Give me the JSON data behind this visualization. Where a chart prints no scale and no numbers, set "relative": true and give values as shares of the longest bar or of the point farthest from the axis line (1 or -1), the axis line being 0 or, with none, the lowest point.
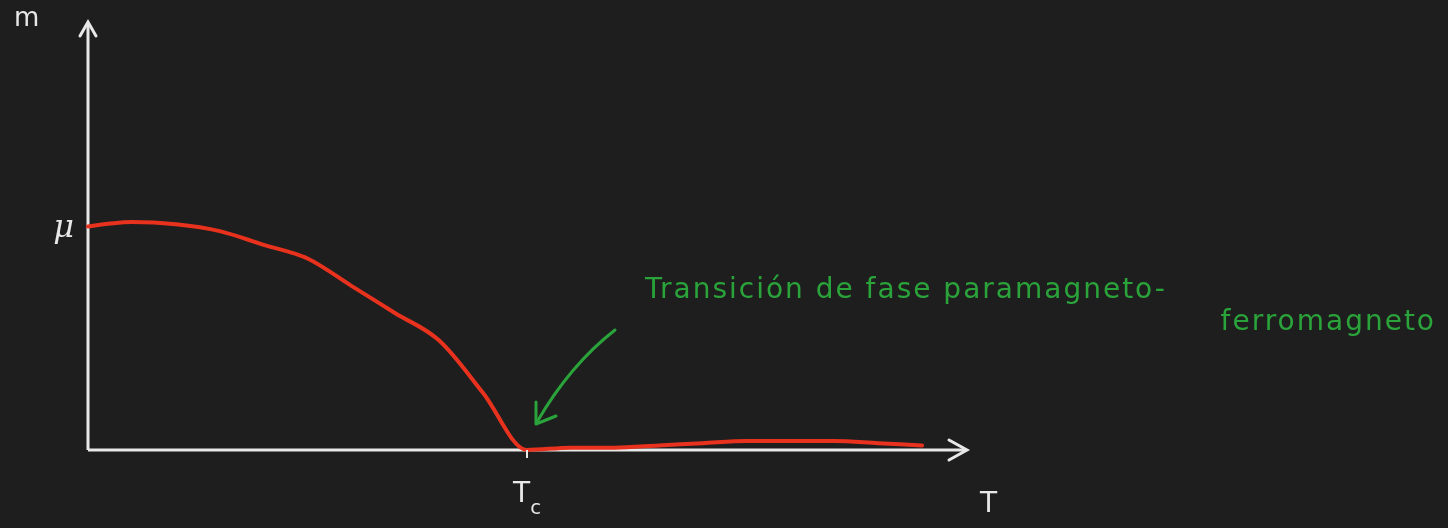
{
  "chart_data": {
    "type": "line",
    "xlabel": "T",
    "relative": true,
    "categories": [
      null,
      null,
      null,
      null,
      null,
      null,
      null,
      null,
      null,
      null,
      null,
      null,
      null,
      null,
      null,
      null,
      null,
      null,
      null,
      null,
      null
    ],
    "values": [
      0.98,
      1,
      0.99,
      0.96,
      0.9,
      0.84,
      0.72,
      0.6,
      0.48,
      0.25,
      0,
      0.01,
      0.01,
      0.02,
      0.03,
      0.04,
      0.04,
      0.04,
      0.03,
      0.02,
      null
    ],
    "color": "#e8321e",
    "annotations": [
      "m",
      "μ",
      {
        "text": "T$_{c}$",
        "y": 0
      },
      "Transición de fase paramagneto-ferromagneto"
    ]
  }
}
